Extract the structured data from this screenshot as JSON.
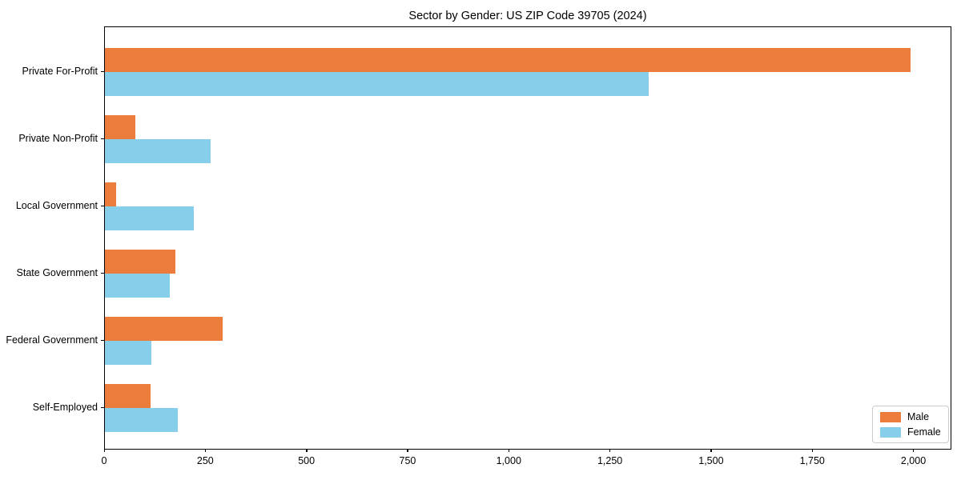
{
  "chart_data": {
    "type": "bar",
    "orientation": "horizontal",
    "title": "Sector by Gender: US ZIP Code 39705 (2024)",
    "categories": [
      "Private For-Profit",
      "Private Non-Profit",
      "Local Government",
      "State Government",
      "Federal Government",
      "Self-Employed"
    ],
    "series": [
      {
        "name": "Male",
        "color": "#ec7c3c",
        "values": [
          1990,
          75,
          28,
          175,
          290,
          112
        ]
      },
      {
        "name": "Female",
        "color": "#87ceeb",
        "values": [
          1343,
          262,
          219,
          160,
          114,
          180
        ]
      }
    ],
    "xlabel": "",
    "ylabel": "",
    "xlim": [
      0,
      2090
    ],
    "xticks": [
      0,
      250,
      500,
      750,
      1000,
      1250,
      1500,
      1750,
      2000
    ],
    "xtick_labels": [
      "0",
      "250",
      "500",
      "750",
      "1,000",
      "1,250",
      "1,500",
      "1,750",
      "2,000"
    ],
    "grid": false,
    "legend_position": "lower right",
    "colors": {
      "axis": "#000000",
      "background": "#ffffff",
      "legend_border": "#cccccc"
    }
  }
}
